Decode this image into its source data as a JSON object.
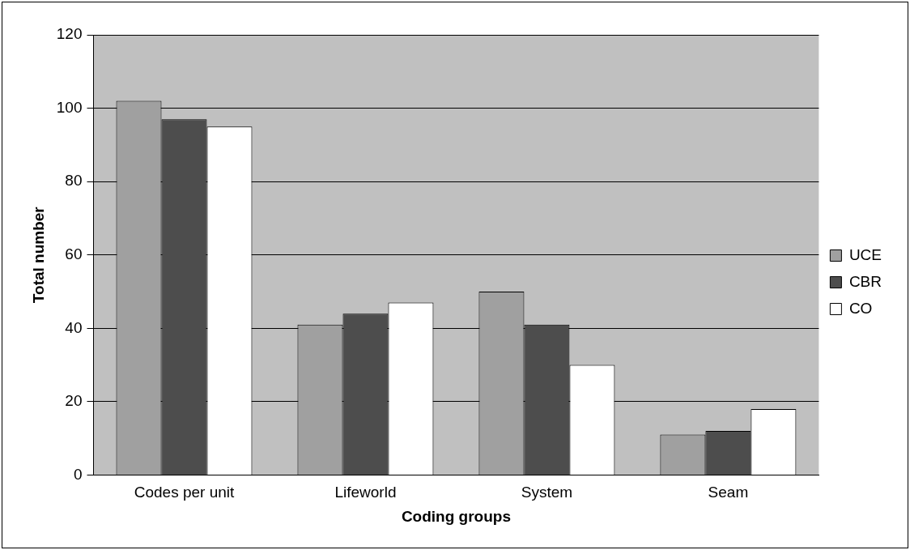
{
  "chart_data": {
    "type": "bar",
    "xlabel": "Coding groups",
    "ylabel": "Total number",
    "categories": [
      "Codes per unit",
      "Lifeworld",
      "System",
      "Seam"
    ],
    "series": [
      {
        "name": "UCE",
        "color": "#a0a0a0",
        "values": [
          102,
          41,
          50,
          11
        ]
      },
      {
        "name": "CBR",
        "color": "#4d4d4d",
        "values": [
          97,
          44,
          41,
          12
        ]
      },
      {
        "name": "CO",
        "color": "#ffffff",
        "values": [
          95,
          47,
          30,
          18
        ]
      }
    ],
    "ylim": [
      0,
      120
    ],
    "yticks": [
      0,
      20,
      40,
      60,
      80,
      100,
      120
    ],
    "grid": "y",
    "legend": "right"
  }
}
